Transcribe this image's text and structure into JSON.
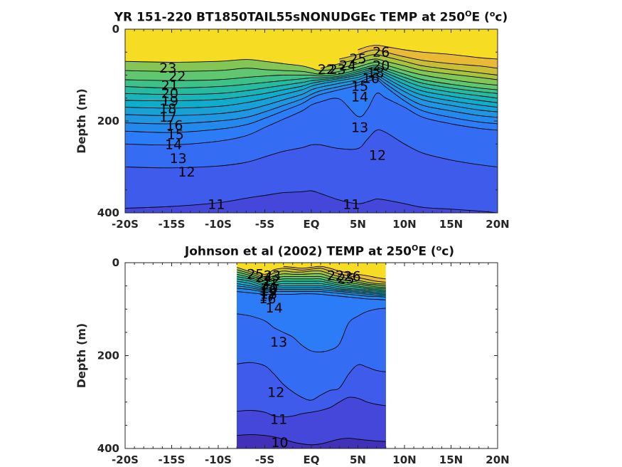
{
  "chart_data": [
    {
      "type": "contour",
      "title": "YR 151-220 BT1850TAIL55sNONUDGEc TEMP at 250",
      "title_sup": "O",
      "title_tail": "E (",
      "title_unit_sup": "o",
      "title_unit_tail": "c)",
      "ylabel": "Depth (m)",
      "xlabel": "",
      "xlim": [
        -20,
        20
      ],
      "ylim": [
        0,
        400
      ],
      "y_reversed": true,
      "xtick_values": [
        -20,
        -15,
        -10,
        -5,
        0,
        5,
        10,
        15,
        20
      ],
      "xtick_labels": [
        "-20S",
        "-15S",
        "-10S",
        "-5S",
        "EQ",
        "5N",
        "10N",
        "15N",
        "20N"
      ],
      "ytick_values": [
        0,
        200,
        400
      ],
      "ytick_labels": [
        "0",
        "200",
        "400"
      ],
      "data_extent_x": [
        -20,
        20
      ],
      "colorscale": "parula",
      "color_range": [
        9,
        28
      ],
      "contour_levels": [
        11,
        12,
        13,
        14,
        15,
        16,
        17,
        18,
        19,
        20,
        21,
        22,
        23,
        24,
        25,
        26
      ],
      "isotherm_depth_profiles": {
        "x": [
          -20,
          -15,
          -10,
          -7,
          -5,
          -3,
          -1,
          0,
          1,
          3,
          5,
          6,
          7,
          8,
          10,
          12,
          15,
          18,
          20
        ],
        "levels": {
          "26": [
            null,
            null,
            null,
            null,
            null,
            null,
            null,
            null,
            null,
            null,
            45,
            38,
            35,
            38,
            45,
            50,
            55,
            62,
            65
          ],
          "25": [
            null,
            null,
            null,
            null,
            null,
            null,
            null,
            null,
            null,
            65,
            55,
            48,
            45,
            50,
            60,
            68,
            75,
            80,
            85
          ],
          "24": [
            null,
            null,
            null,
            null,
            null,
            null,
            null,
            null,
            85,
            75,
            65,
            58,
            55,
            60,
            70,
            80,
            88,
            95,
            100
          ],
          "23": [
            70,
            72,
            70,
            66,
            70,
            75,
            80,
            85,
            90,
            85,
            75,
            68,
            65,
            70,
            80,
            90,
            98,
            105,
            110
          ],
          "22": [
            90,
            92,
            90,
            85,
            88,
            90,
            92,
            95,
            98,
            92,
            82,
            76,
            72,
            78,
            90,
            100,
            110,
            118,
            122
          ],
          "21": [
            110,
            112,
            110,
            105,
            102,
            100,
            100,
            100,
            102,
            98,
            88,
            82,
            78,
            85,
            98,
            110,
            120,
            128,
            132
          ],
          "20": [
            125,
            128,
            125,
            120,
            116,
            112,
            108,
            106,
            106,
            102,
            92,
            86,
            82,
            90,
            105,
            118,
            128,
            136,
            140
          ],
          "19": [
            140,
            142,
            140,
            134,
            128,
            122,
            116,
            112,
            110,
            105,
            96,
            90,
            86,
            95,
            112,
            126,
            137,
            145,
            150
          ],
          "18": [
            155,
            156,
            153,
            146,
            140,
            132,
            124,
            118,
            114,
            108,
            100,
            94,
            90,
            100,
            120,
            135,
            146,
            155,
            160
          ],
          "17": [
            170,
            172,
            168,
            160,
            152,
            142,
            132,
            124,
            119,
            112,
            105,
            98,
            95,
            106,
            128,
            144,
            156,
            165,
            170
          ],
          "16": [
            186,
            188,
            184,
            176,
            166,
            154,
            142,
            132,
            126,
            118,
            110,
            103,
            100,
            112,
            136,
            154,
            166,
            176,
            180
          ],
          "15": [
            204,
            206,
            200,
            192,
            180,
            166,
            152,
            142,
            134,
            125,
            116,
            108,
            105,
            119,
            146,
            166,
            178,
            188,
            192
          ],
          "14": [
            222,
            225,
            218,
            208,
            194,
            178,
            162,
            150,
            142,
            132,
            122,
            114,
            110,
            126,
            156,
            178,
            192,
            202,
            206
          ],
          "13": [
            250,
            252,
            244,
            232,
            214,
            196,
            178,
            165,
            158,
            152,
            190,
            175,
            140,
            150,
            170,
            192,
            206,
            216,
            220
          ],
          "12": [
            300,
            302,
            298,
            290,
            278,
            266,
            258,
            252,
            252,
            260,
            260,
            240,
            220,
            225,
            250,
            270,
            285,
            295,
            300
          ],
          "11": [
            390,
            386,
            378,
            368,
            362,
            356,
            354,
            352,
            358,
            372,
            380,
            376,
            370,
            372,
            380,
            388,
            392,
            396,
            400
          ]
        }
      },
      "contour_labels": [
        {
          "text": "26",
          "x": 7.5,
          "y": 50
        },
        {
          "text": "25",
          "x": 5.0,
          "y": 65
        },
        {
          "text": "24",
          "x": 3.9,
          "y": 80
        },
        {
          "text": "23",
          "x": 2.8,
          "y": 88
        },
        {
          "text": "22",
          "x": 1.6,
          "y": 88
        },
        {
          "text": "20",
          "x": 7.5,
          "y": 80
        },
        {
          "text": "18",
          "x": 6.9,
          "y": 95
        },
        {
          "text": "16",
          "x": 6.4,
          "y": 108
        },
        {
          "text": "15",
          "x": 5.2,
          "y": 125
        },
        {
          "text": "14",
          "x": 5.2,
          "y": 148
        },
        {
          "text": "13",
          "x": 5.2,
          "y": 215
        },
        {
          "text": "12",
          "x": 7.1,
          "y": 275
        },
        {
          "text": "11",
          "x": 4.3,
          "y": 382
        },
        {
          "text": "11",
          "x": -10.2,
          "y": 382
        },
        {
          "text": "23",
          "x": -15.4,
          "y": 85
        },
        {
          "text": "22",
          "x": -14.4,
          "y": 103
        },
        {
          "text": "21",
          "x": -15.2,
          "y": 123
        },
        {
          "text": "20",
          "x": -15.2,
          "y": 140
        },
        {
          "text": "19",
          "x": -15.2,
          "y": 157
        },
        {
          "text": "18",
          "x": -15.4,
          "y": 174
        },
        {
          "text": "17",
          "x": -15.4,
          "y": 192
        },
        {
          "text": "16",
          "x": -14.7,
          "y": 210
        },
        {
          "text": "15",
          "x": -14.6,
          "y": 230
        },
        {
          "text": "14",
          "x": -14.8,
          "y": 252
        },
        {
          "text": "13",
          "x": -14.3,
          "y": 282
        },
        {
          "text": "12",
          "x": -13.4,
          "y": 312
        }
      ]
    },
    {
      "type": "contour",
      "title": "Johnson et al (2002) TEMP at 250",
      "title_sup": "O",
      "title_tail": "E (",
      "title_unit_sup": "o",
      "title_unit_tail": "c)",
      "ylabel": "Depth (m)",
      "xlabel": "",
      "xlim": [
        -20,
        20
      ],
      "ylim": [
        0,
        400
      ],
      "y_reversed": true,
      "xtick_values": [
        -20,
        -15,
        -10,
        -5,
        0,
        5,
        10,
        15,
        20
      ],
      "xtick_labels": [
        "-20S",
        "-15S",
        "-10S",
        "-5S",
        "EQ",
        "5N",
        "10N",
        "15N",
        "20N"
      ],
      "ytick_values": [
        0,
        200,
        400
      ],
      "ytick_labels": [
        "0",
        "200",
        "400"
      ],
      "data_extent_x": [
        -8,
        8
      ],
      "colorscale": "parula",
      "color_range": [
        9,
        28
      ],
      "contour_levels": [
        10,
        11,
        12,
        13,
        14,
        15,
        16,
        17,
        18,
        19,
        20,
        21,
        22,
        23,
        24,
        25,
        26
      ],
      "isotherm_depth_profiles": {
        "x": [
          -8,
          -6.5,
          -5,
          -4,
          -3,
          -2,
          -1,
          0,
          1,
          2,
          3,
          4,
          5,
          6,
          7,
          8
        ],
        "levels": {
          "26": [
            null,
            null,
            null,
            null,
            8,
            10,
            12,
            10,
            8,
            12,
            18,
            22,
            25,
            28,
            32,
            35
          ],
          "25": [
            null,
            15,
            25,
            15,
            12,
            14,
            16,
            14,
            12,
            18,
            24,
            28,
            32,
            36,
            40,
            42
          ],
          "24": [
            10,
            20,
            30,
            22,
            18,
            20,
            20,
            18,
            18,
            24,
            30,
            34,
            38,
            42,
            45,
            46
          ],
          "23": [
            15,
            24,
            34,
            28,
            24,
            25,
            25,
            24,
            24,
            30,
            35,
            39,
            42,
            46,
            48,
            50
          ],
          "22": [
            20,
            28,
            38,
            33,
            30,
            30,
            30,
            30,
            30,
            35,
            40,
            43,
            46,
            49,
            52,
            53
          ],
          "21": [
            25,
            32,
            42,
            38,
            35,
            35,
            35,
            35,
            35,
            40,
            44,
            47,
            50,
            53,
            55,
            56
          ],
          "20": [
            30,
            36,
            46,
            43,
            40,
            40,
            40,
            40,
            40,
            44,
            48,
            51,
            53,
            56,
            58,
            59
          ],
          "19": [
            35,
            40,
            50,
            47,
            45,
            45,
            45,
            45,
            45,
            48,
            52,
            55,
            57,
            59,
            61,
            62
          ],
          "18": [
            40,
            45,
            54,
            51,
            50,
            50,
            50,
            50,
            50,
            52,
            56,
            58,
            60,
            62,
            64,
            65
          ],
          "17": [
            45,
            50,
            57,
            55,
            54,
            54,
            54,
            54,
            54,
            56,
            59,
            61,
            63,
            65,
            67,
            68
          ],
          "16": [
            50,
            54,
            60,
            58,
            58,
            58,
            58,
            58,
            58,
            60,
            62,
            64,
            66,
            68,
            70,
            71
          ],
          "15": [
            55,
            58,
            63,
            62,
            62,
            62,
            62,
            62,
            62,
            64,
            66,
            68,
            70,
            72,
            73,
            74
          ],
          "14": [
            62,
            65,
            68,
            68,
            68,
            68,
            67,
            67,
            68,
            70,
            72,
            74,
            76,
            78,
            79,
            80
          ],
          "13": [
            110,
            115,
            125,
            140,
            150,
            160,
            178,
            190,
            192,
            188,
            175,
            130,
            115,
            105,
            100,
            98
          ],
          "12": [
            218,
            215,
            222,
            240,
            262,
            278,
            290,
            296,
            285,
            275,
            270,
            240,
            220,
            225,
            232,
            235
          ],
          "11": [
            320,
            318,
            322,
            330,
            332,
            330,
            325,
            322,
            318,
            312,
            300,
            290,
            292,
            300,
            305,
            308
          ],
          "10": [
            372,
            370,
            372,
            375,
            380,
            386,
            390,
            392,
            390,
            385,
            380,
            378,
            380,
            382,
            384,
            385
          ]
        }
      },
      "contour_labels": [
        {
          "text": "25",
          "x": -6.0,
          "y": 25
        },
        {
          "text": "24",
          "x": -5.1,
          "y": 32
        },
        {
          "text": "23",
          "x": -4.2,
          "y": 28
        },
        {
          "text": "22",
          "x": -4.3,
          "y": 40
        },
        {
          "text": "21",
          "x": -4.5,
          "y": 48
        },
        {
          "text": "20",
          "x": -4.5,
          "y": 56
        },
        {
          "text": "19",
          "x": -4.6,
          "y": 62
        },
        {
          "text": "18",
          "x": -4.6,
          "y": 68
        },
        {
          "text": "17",
          "x": -4.7,
          "y": 73
        },
        {
          "text": "16",
          "x": -4.7,
          "y": 78
        },
        {
          "text": "14",
          "x": -4.0,
          "y": 98
        },
        {
          "text": "22",
          "x": 2.6,
          "y": 28
        },
        {
          "text": "25",
          "x": 3.7,
          "y": 35
        },
        {
          "text": "26",
          "x": 4.4,
          "y": 30
        },
        {
          "text": "13",
          "x": -3.5,
          "y": 172
        },
        {
          "text": "12",
          "x": -3.8,
          "y": 280
        },
        {
          "text": "11",
          "x": -3.5,
          "y": 338
        },
        {
          "text": "10",
          "x": -3.4,
          "y": 388
        }
      ]
    }
  ]
}
